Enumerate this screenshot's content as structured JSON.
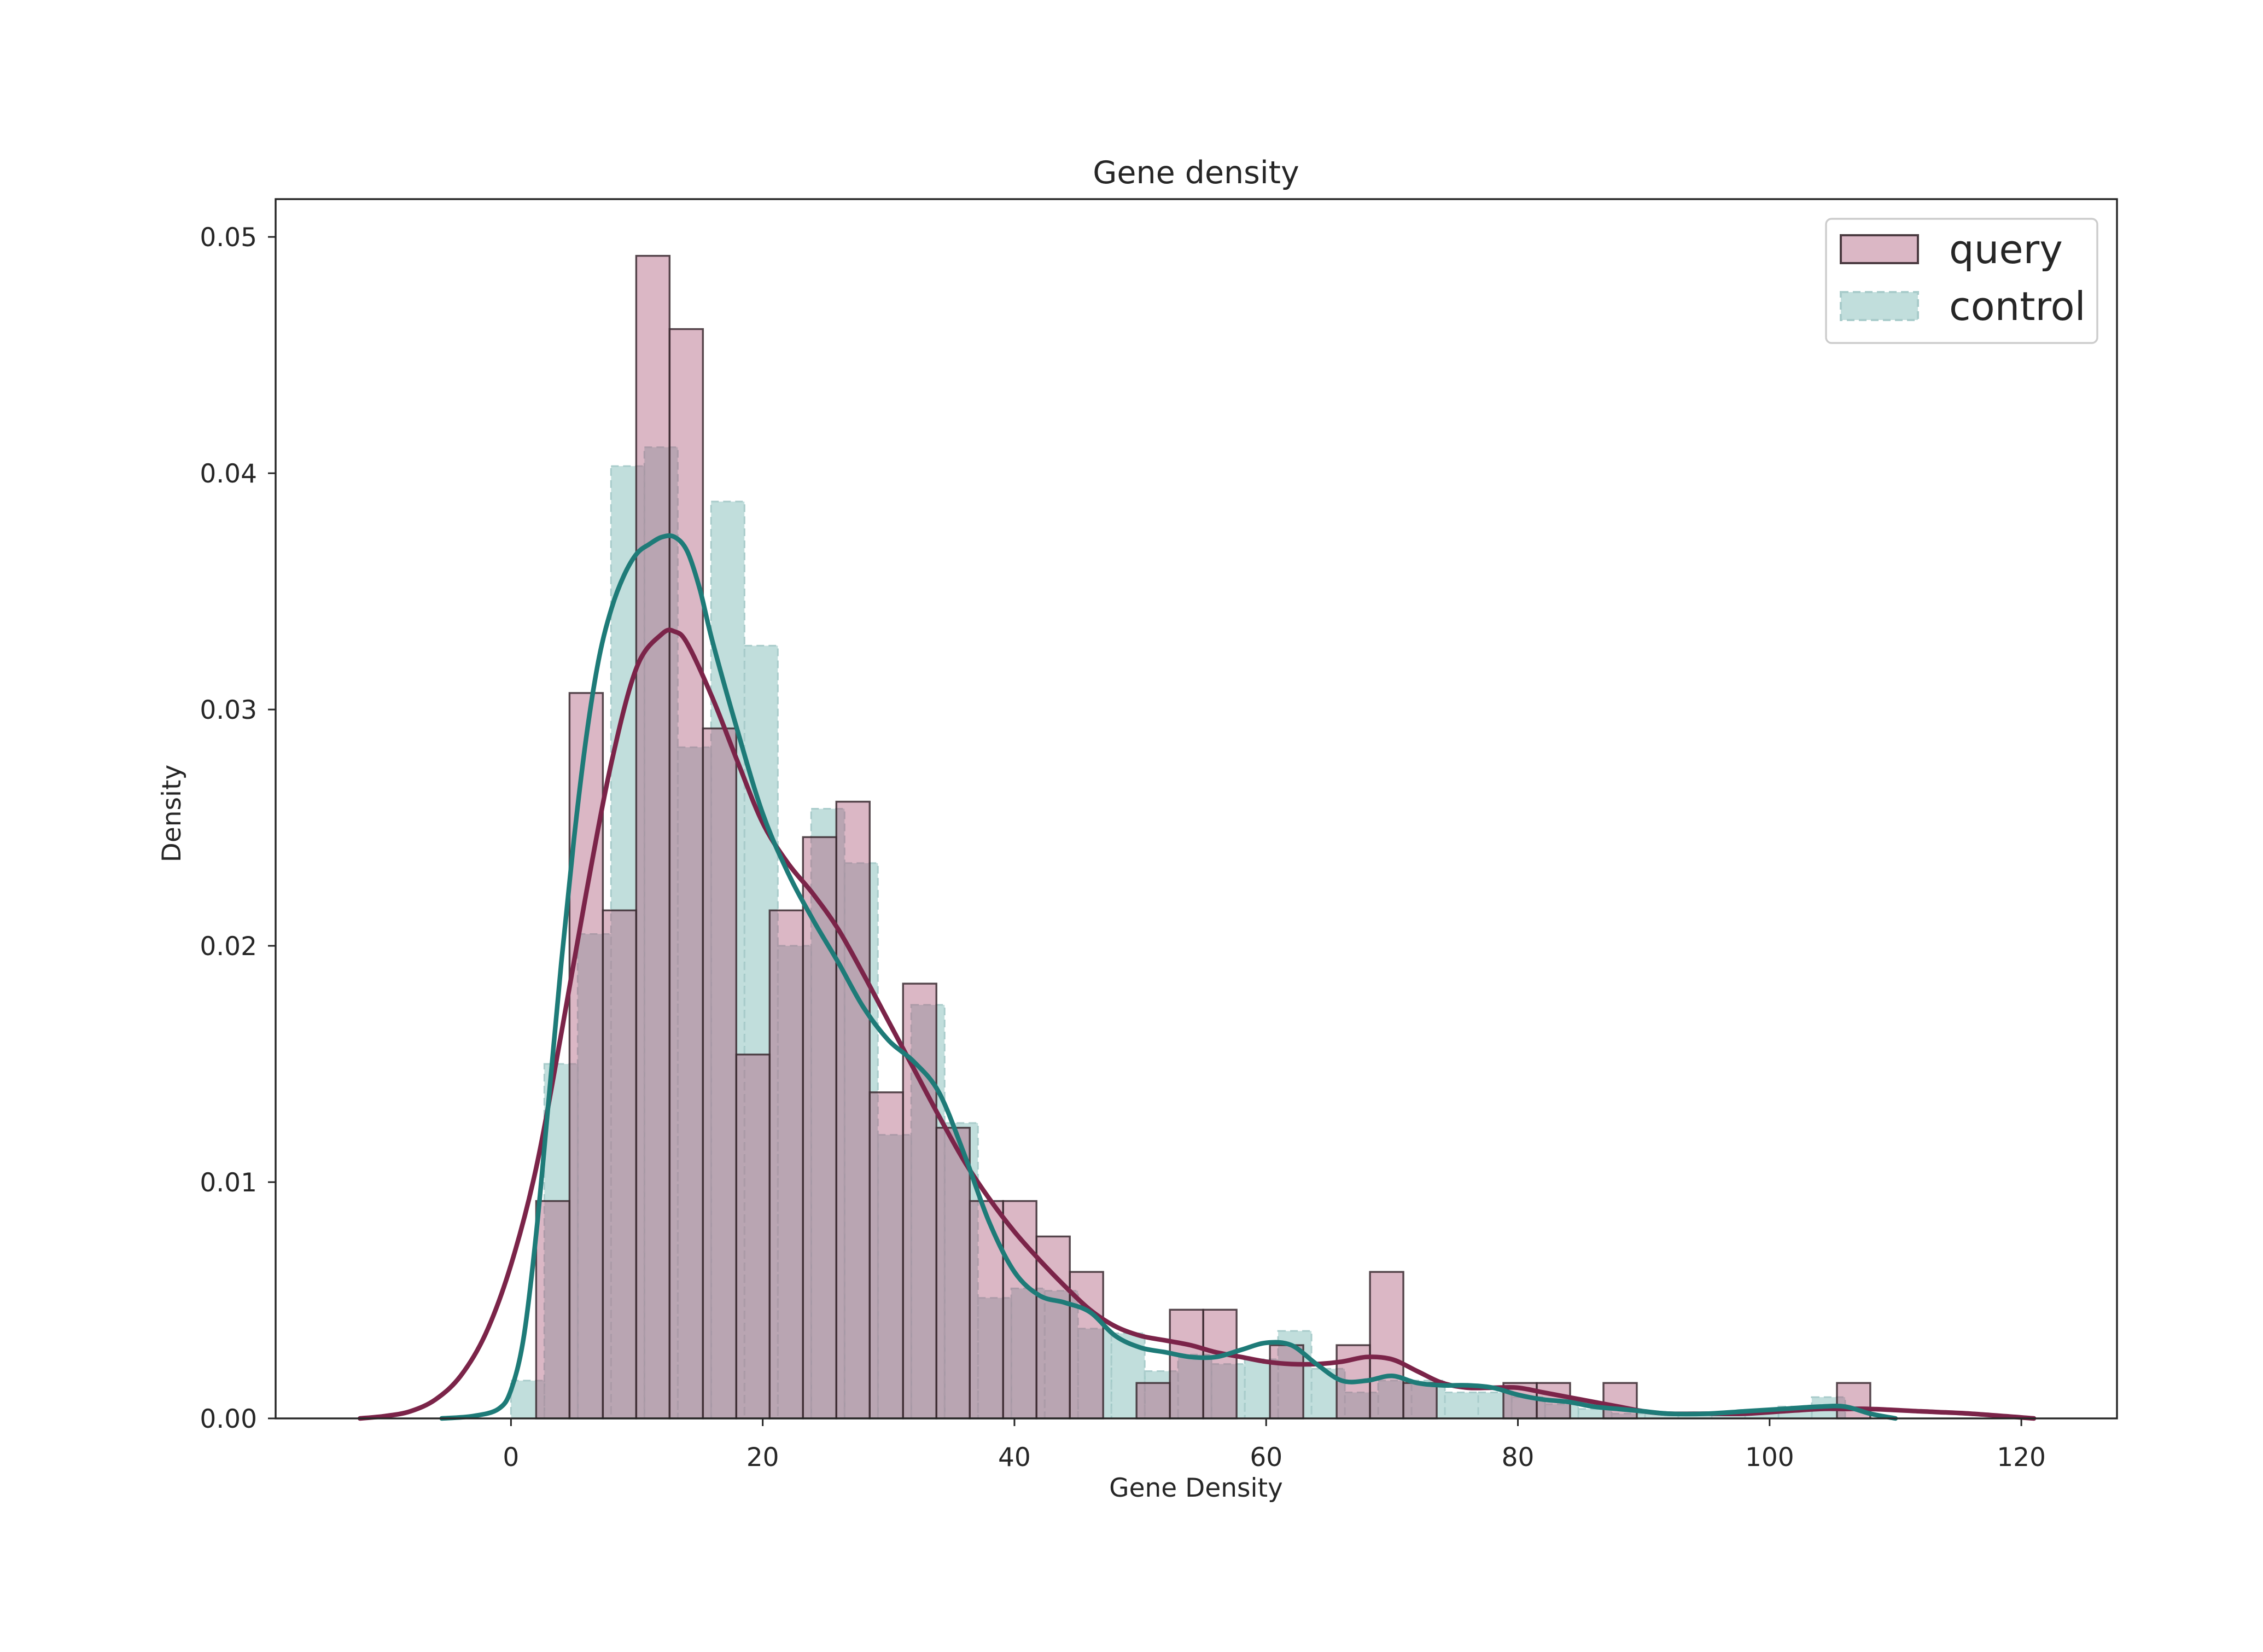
{
  "chart_data": {
    "type": "bar",
    "title": "Gene density",
    "xlabel": "Gene Density",
    "ylabel": "Density",
    "xlim": [
      -18.7,
      127.6
    ],
    "ylim": [
      0,
      0.0516
    ],
    "xticks": [
      0,
      20,
      40,
      60,
      80,
      100,
      120
    ],
    "yticks": [
      0.0,
      0.01,
      0.02,
      0.03,
      0.04,
      0.05
    ],
    "ytick_labels": [
      "0.00",
      "0.01",
      "0.02",
      "0.03",
      "0.04",
      "0.05"
    ],
    "grid": false,
    "legend": {
      "position": "top-right",
      "entries": [
        "query",
        "control"
      ]
    },
    "colors": {
      "query_fill": "#b0607e",
      "query_edge": "#3a2a30",
      "query_line": "#7b2449",
      "control_fill": "#8ec2c0",
      "control_edge": "#a9cccb",
      "control_line": "#1e7b78"
    },
    "histograms": [
      {
        "name": "query",
        "bin_width": 2.65,
        "bins": [
          {
            "x0": 2.0,
            "value": 0.0092
          },
          {
            "x0": 4.65,
            "value": 0.0307
          },
          {
            "x0": 7.3,
            "value": 0.0215
          },
          {
            "x0": 9.95,
            "value": 0.0492
          },
          {
            "x0": 12.6,
            "value": 0.0461
          },
          {
            "x0": 15.25,
            "value": 0.0292
          },
          {
            "x0": 17.9,
            "value": 0.0154
          },
          {
            "x0": 20.55,
            "value": 0.0215
          },
          {
            "x0": 23.2,
            "value": 0.0246
          },
          {
            "x0": 25.85,
            "value": 0.0261
          },
          {
            "x0": 28.5,
            "value": 0.0138
          },
          {
            "x0": 31.15,
            "value": 0.0184
          },
          {
            "x0": 33.8,
            "value": 0.0123
          },
          {
            "x0": 36.45,
            "value": 0.0092
          },
          {
            "x0": 39.1,
            "value": 0.0092
          },
          {
            "x0": 41.75,
            "value": 0.0077
          },
          {
            "x0": 44.4,
            "value": 0.0062
          },
          {
            "x0": 47.05,
            "value": 0.0
          },
          {
            "x0": 49.7,
            "value": 0.0015
          },
          {
            "x0": 52.35,
            "value": 0.0046
          },
          {
            "x0": 55.0,
            "value": 0.0046
          },
          {
            "x0": 57.65,
            "value": 0.0
          },
          {
            "x0": 60.3,
            "value": 0.0031
          },
          {
            "x0": 62.95,
            "value": 0.0
          },
          {
            "x0": 65.6,
            "value": 0.0031
          },
          {
            "x0": 68.25,
            "value": 0.0062
          },
          {
            "x0": 70.9,
            "value": 0.0015
          },
          {
            "x0": 73.55,
            "value": 0.0
          },
          {
            "x0": 76.2,
            "value": 0.0
          },
          {
            "x0": 78.85,
            "value": 0.0015
          },
          {
            "x0": 81.5,
            "value": 0.0015
          },
          {
            "x0": 84.15,
            "value": 0.0
          },
          {
            "x0": 86.8,
            "value": 0.0015
          },
          {
            "x0": 89.45,
            "value": 0.0
          },
          {
            "x0": 92.1,
            "value": 0.0
          },
          {
            "x0": 94.75,
            "value": 0.0
          },
          {
            "x0": 97.4,
            "value": 0.0
          },
          {
            "x0": 100.05,
            "value": 0.0
          },
          {
            "x0": 102.7,
            "value": 0.0
          },
          {
            "x0": 105.35,
            "value": 0.0015
          }
        ]
      },
      {
        "name": "control",
        "bin_width": 2.65,
        "bins": [
          {
            "x0": 0.0,
            "value": 0.0016
          },
          {
            "x0": 2.65,
            "value": 0.015
          },
          {
            "x0": 5.3,
            "value": 0.0205
          },
          {
            "x0": 7.95,
            "value": 0.0403
          },
          {
            "x0": 10.6,
            "value": 0.0411
          },
          {
            "x0": 13.25,
            "value": 0.0284
          },
          {
            "x0": 15.9,
            "value": 0.0388
          },
          {
            "x0": 18.55,
            "value": 0.0327
          },
          {
            "x0": 21.2,
            "value": 0.02
          },
          {
            "x0": 23.85,
            "value": 0.0258
          },
          {
            "x0": 26.5,
            "value": 0.0235
          },
          {
            "x0": 29.15,
            "value": 0.012
          },
          {
            "x0": 31.8,
            "value": 0.0175
          },
          {
            "x0": 34.45,
            "value": 0.0125
          },
          {
            "x0": 37.1,
            "value": 0.0051
          },
          {
            "x0": 39.75,
            "value": 0.0055
          },
          {
            "x0": 42.4,
            "value": 0.0054
          },
          {
            "x0": 45.05,
            "value": 0.0038
          },
          {
            "x0": 47.7,
            "value": 0.0036
          },
          {
            "x0": 50.35,
            "value": 0.002
          },
          {
            "x0": 53.0,
            "value": 0.0027
          },
          {
            "x0": 55.65,
            "value": 0.0023
          },
          {
            "x0": 58.3,
            "value": 0.0025
          },
          {
            "x0": 60.95,
            "value": 0.0037
          },
          {
            "x0": 63.6,
            "value": 0.0021
          },
          {
            "x0": 66.25,
            "value": 0.0011
          },
          {
            "x0": 68.9,
            "value": 0.0016
          },
          {
            "x0": 71.55,
            "value": 0.0016
          },
          {
            "x0": 74.2,
            "value": 0.0011
          },
          {
            "x0": 76.85,
            "value": 0.0011
          },
          {
            "x0": 79.5,
            "value": 0.0009
          },
          {
            "x0": 82.15,
            "value": 0.0006
          },
          {
            "x0": 84.8,
            "value": 0.0004
          },
          {
            "x0": 87.45,
            "value": 0.0002
          },
          {
            "x0": 90.1,
            "value": 0.0002
          },
          {
            "x0": 92.75,
            "value": 0.0002
          },
          {
            "x0": 95.4,
            "value": 0.0002
          },
          {
            "x0": 98.05,
            "value": 0.0003
          },
          {
            "x0": 100.7,
            "value": 0.0005
          },
          {
            "x0": 103.35,
            "value": 0.0009
          }
        ]
      }
    ],
    "kde": [
      {
        "name": "query",
        "x": [
          -12,
          -10,
          -8,
          -6,
          -4,
          -2,
          0,
          2,
          4,
          6,
          8,
          10,
          12,
          13,
          14,
          16,
          18,
          20,
          22,
          24,
          26,
          28,
          30,
          32,
          34,
          36,
          38,
          40,
          42,
          44,
          46,
          48,
          50,
          52,
          54,
          56,
          58,
          60,
          62,
          64,
          66,
          68,
          70,
          72,
          74,
          76,
          78,
          80,
          82,
          84,
          86,
          88,
          90,
          92,
          95,
          98,
          101,
          104,
          106,
          108,
          112,
          116,
          121
        ],
        "y": [
          0,
          0.0001,
          0.0003,
          0.0008,
          0.0018,
          0.0036,
          0.0065,
          0.0106,
          0.0163,
          0.0223,
          0.0278,
          0.0318,
          0.0332,
          0.0333,
          0.0328,
          0.0305,
          0.0278,
          0.0252,
          0.0235,
          0.0222,
          0.0207,
          0.0188,
          0.0168,
          0.0148,
          0.0128,
          0.0109,
          0.0093,
          0.0079,
          0.0067,
          0.0056,
          0.0046,
          0.0039,
          0.0035,
          0.0033,
          0.0031,
          0.0028,
          0.0026,
          0.0024,
          0.0023,
          0.0023,
          0.0024,
          0.0026,
          0.0025,
          0.002,
          0.0015,
          0.0013,
          0.0013,
          0.0013,
          0.0011,
          0.0009,
          0.0007,
          0.0005,
          0.0003,
          0.0002,
          0.0002,
          0.0002,
          0.0003,
          0.0004,
          0.0004,
          0.0004,
          0.0003,
          0.0002,
          0
        ]
      },
      {
        "name": "control",
        "x": [
          -5.5,
          -3,
          -1,
          0,
          1,
          2,
          3,
          4,
          5,
          6,
          7,
          8,
          9,
          10,
          11,
          12,
          13,
          14,
          15,
          16,
          18,
          20,
          22,
          24,
          26,
          28,
          30,
          32,
          34,
          36,
          38,
          40,
          42,
          44,
          46,
          48,
          50,
          52,
          54,
          56,
          58,
          60,
          62,
          64,
          66,
          68,
          70,
          72,
          74,
          76,
          78,
          80,
          82,
          84,
          86,
          88,
          90,
          92,
          95,
          98,
          101,
          104,
          106,
          108,
          110
        ],
        "y": [
          0,
          0.0001,
          0.0004,
          0.0012,
          0.0034,
          0.0078,
          0.0135,
          0.0193,
          0.0245,
          0.0289,
          0.0322,
          0.0343,
          0.0357,
          0.0366,
          0.037,
          0.0373,
          0.0373,
          0.0367,
          0.0351,
          0.0329,
          0.0291,
          0.0256,
          0.0231,
          0.0211,
          0.0193,
          0.0174,
          0.016,
          0.0151,
          0.0138,
          0.0112,
          0.0083,
          0.0062,
          0.0052,
          0.0049,
          0.0045,
          0.0035,
          0.003,
          0.0028,
          0.0026,
          0.0026,
          0.0029,
          0.0032,
          0.0031,
          0.0023,
          0.0016,
          0.0016,
          0.0018,
          0.0015,
          0.0014,
          0.0014,
          0.0013,
          0.001,
          0.0008,
          0.0007,
          0.0005,
          0.0004,
          0.0003,
          0.0002,
          0.0002,
          0.0003,
          0.0004,
          0.0005,
          0.0005,
          0.0002,
          0
        ]
      }
    ]
  }
}
